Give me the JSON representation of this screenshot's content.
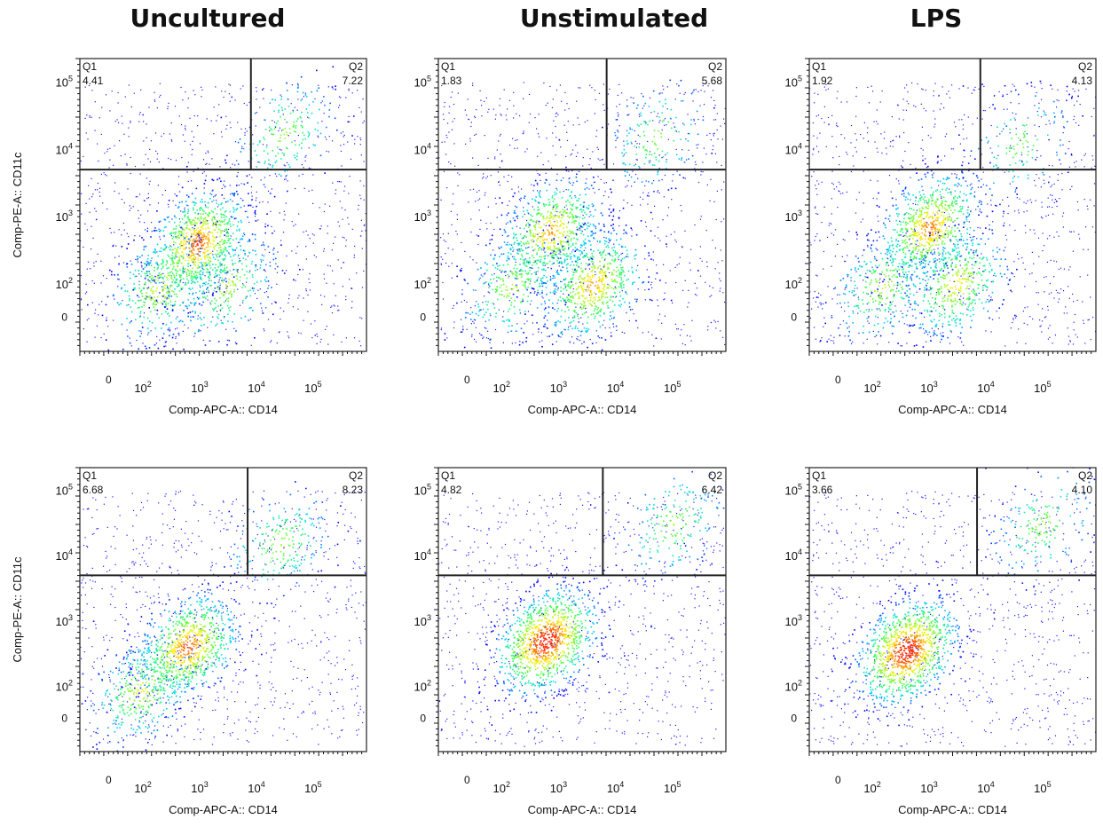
{
  "columns": [
    "Uncultured",
    "Unstimulated",
    "LPS"
  ],
  "colors": {
    "low": "#0000ff",
    "mid": "#00ffff",
    "mid2": "#40ff40",
    "high": "#ffff00",
    "peak": "#ff0000",
    "gate": "#222222"
  },
  "chart_data": [
    {
      "type": "scatter",
      "row": 1,
      "column": "Uncultured",
      "xlabel": "Comp-APC-A:: CD14",
      "ylabel": "Comp-PE-A:: CD11c",
      "x_ticks": [
        "0",
        "10^2",
        "10^3",
        "10^4",
        "10^5"
      ],
      "y_ticks": [
        "0",
        "10^2",
        "10^3",
        "10^4",
        "10^5"
      ],
      "scale": "biexponential",
      "gate_x": 8000,
      "gate_y": 5000,
      "quadrants": [
        {
          "name": "Q1",
          "value": "4.41"
        },
        {
          "name": "Q2",
          "value": "7.22"
        }
      ],
      "populations": [
        {
          "cd14": 900,
          "cd11c": 400,
          "weight": 0.45
        },
        {
          "cd14": 200,
          "cd11c": 60,
          "weight": 0.2
        },
        {
          "cd14": 3000,
          "cd11c": 90,
          "weight": 0.15
        },
        {
          "cd14": 30000,
          "cd11c": 17000,
          "weight": 0.1
        }
      ]
    },
    {
      "type": "scatter",
      "row": 1,
      "column": "Unstimulated",
      "xlabel": "Comp-APC-A:: CD14",
      "ylabel": "",
      "x_ticks": [
        "0",
        "10^2",
        "10^3",
        "10^4",
        "10^5"
      ],
      "y_ticks": [
        "0",
        "10^2",
        "10^3",
        "10^4",
        "10^5"
      ],
      "scale": "biexponential",
      "gate_x": 7000,
      "gate_y": 5000,
      "quadrants": [
        {
          "name": "Q1",
          "value": "1.83"
        },
        {
          "name": "Q2",
          "value": "5.68"
        }
      ],
      "populations": [
        {
          "cd14": 700,
          "cd11c": 600,
          "weight": 0.35
        },
        {
          "cd14": 4000,
          "cd11c": 90,
          "weight": 0.35
        },
        {
          "cd14": 150,
          "cd11c": 80,
          "weight": 0.15
        },
        {
          "cd14": 50000,
          "cd11c": 15000,
          "weight": 0.08
        }
      ]
    },
    {
      "type": "scatter",
      "row": 1,
      "column": "LPS",
      "xlabel": "Comp-APC-A:: CD14",
      "ylabel": "",
      "x_ticks": [
        "0",
        "10^2",
        "10^3",
        "10^4",
        "10^5"
      ],
      "y_ticks": [
        "0",
        "10^2",
        "10^3",
        "10^4",
        "10^5"
      ],
      "scale": "biexponential",
      "gate_x": 8000,
      "gate_y": 5000,
      "quadrants": [
        {
          "name": "Q1",
          "value": "1.92"
        },
        {
          "name": "Q2",
          "value": "4.13"
        }
      ],
      "populations": [
        {
          "cd14": 1000,
          "cd11c": 700,
          "weight": 0.4
        },
        {
          "cd14": 3000,
          "cd11c": 100,
          "weight": 0.25
        },
        {
          "cd14": 150,
          "cd11c": 80,
          "weight": 0.15
        },
        {
          "cd14": 40000,
          "cd11c": 12000,
          "weight": 0.07
        }
      ]
    },
    {
      "type": "scatter",
      "row": 2,
      "column": "Uncultured",
      "xlabel": "Comp-APC-A:: CD14",
      "ylabel": "Comp-PE-A:: CD11c",
      "x_ticks": [
        "0",
        "10^2",
        "10^3",
        "10^4",
        "10^5"
      ],
      "y_ticks": [
        "0",
        "10^2",
        "10^3",
        "10^4",
        "10^5"
      ],
      "scale": "biexponential",
      "gate_x": 7000,
      "gate_y": 5000,
      "quadrants": [
        {
          "name": "Q1",
          "value": "6.68"
        },
        {
          "name": "Q2",
          "value": "8.23"
        }
      ],
      "populations": [
        {
          "cd14": 600,
          "cd11c": 400,
          "weight": 0.45
        },
        {
          "cd14": 80,
          "cd11c": 60,
          "weight": 0.2
        },
        {
          "cd14": 25000,
          "cd11c": 15000,
          "weight": 0.12
        }
      ]
    },
    {
      "type": "scatter",
      "row": 2,
      "column": "Unstimulated",
      "xlabel": "Comp-APC-A:: CD14",
      "ylabel": "",
      "x_ticks": [
        "0",
        "10^2",
        "10^3",
        "10^4",
        "10^5"
      ],
      "y_ticks": [
        "0",
        "10^2",
        "10^3",
        "10^4",
        "10^5"
      ],
      "scale": "biexponential",
      "gate_x": 6000,
      "gate_y": 5000,
      "quadrants": [
        {
          "name": "Q1",
          "value": "4.82"
        },
        {
          "name": "Q2",
          "value": "6.42"
        }
      ],
      "populations": [
        {
          "cd14": 600,
          "cd11c": 500,
          "weight": 0.6
        },
        {
          "cd14": 100000,
          "cd11c": 30000,
          "weight": 0.1
        }
      ]
    },
    {
      "type": "scatter",
      "row": 2,
      "column": "LPS",
      "xlabel": "Comp-APC-A:: CD14",
      "ylabel": "",
      "x_ticks": [
        "0",
        "10^2",
        "10^3",
        "10^4",
        "10^5"
      ],
      "y_ticks": [
        "0",
        "10^2",
        "10^3",
        "10^4",
        "10^5"
      ],
      "scale": "biexponential",
      "gate_x": 7000,
      "gate_y": 5000,
      "quadrants": [
        {
          "name": "Q1",
          "value": "3.66"
        },
        {
          "name": "Q2",
          "value": "4.10"
        }
      ],
      "populations": [
        {
          "cd14": 400,
          "cd11c": 350,
          "weight": 0.6
        },
        {
          "cd14": 100000,
          "cd11c": 30000,
          "weight": 0.1
        }
      ]
    }
  ]
}
